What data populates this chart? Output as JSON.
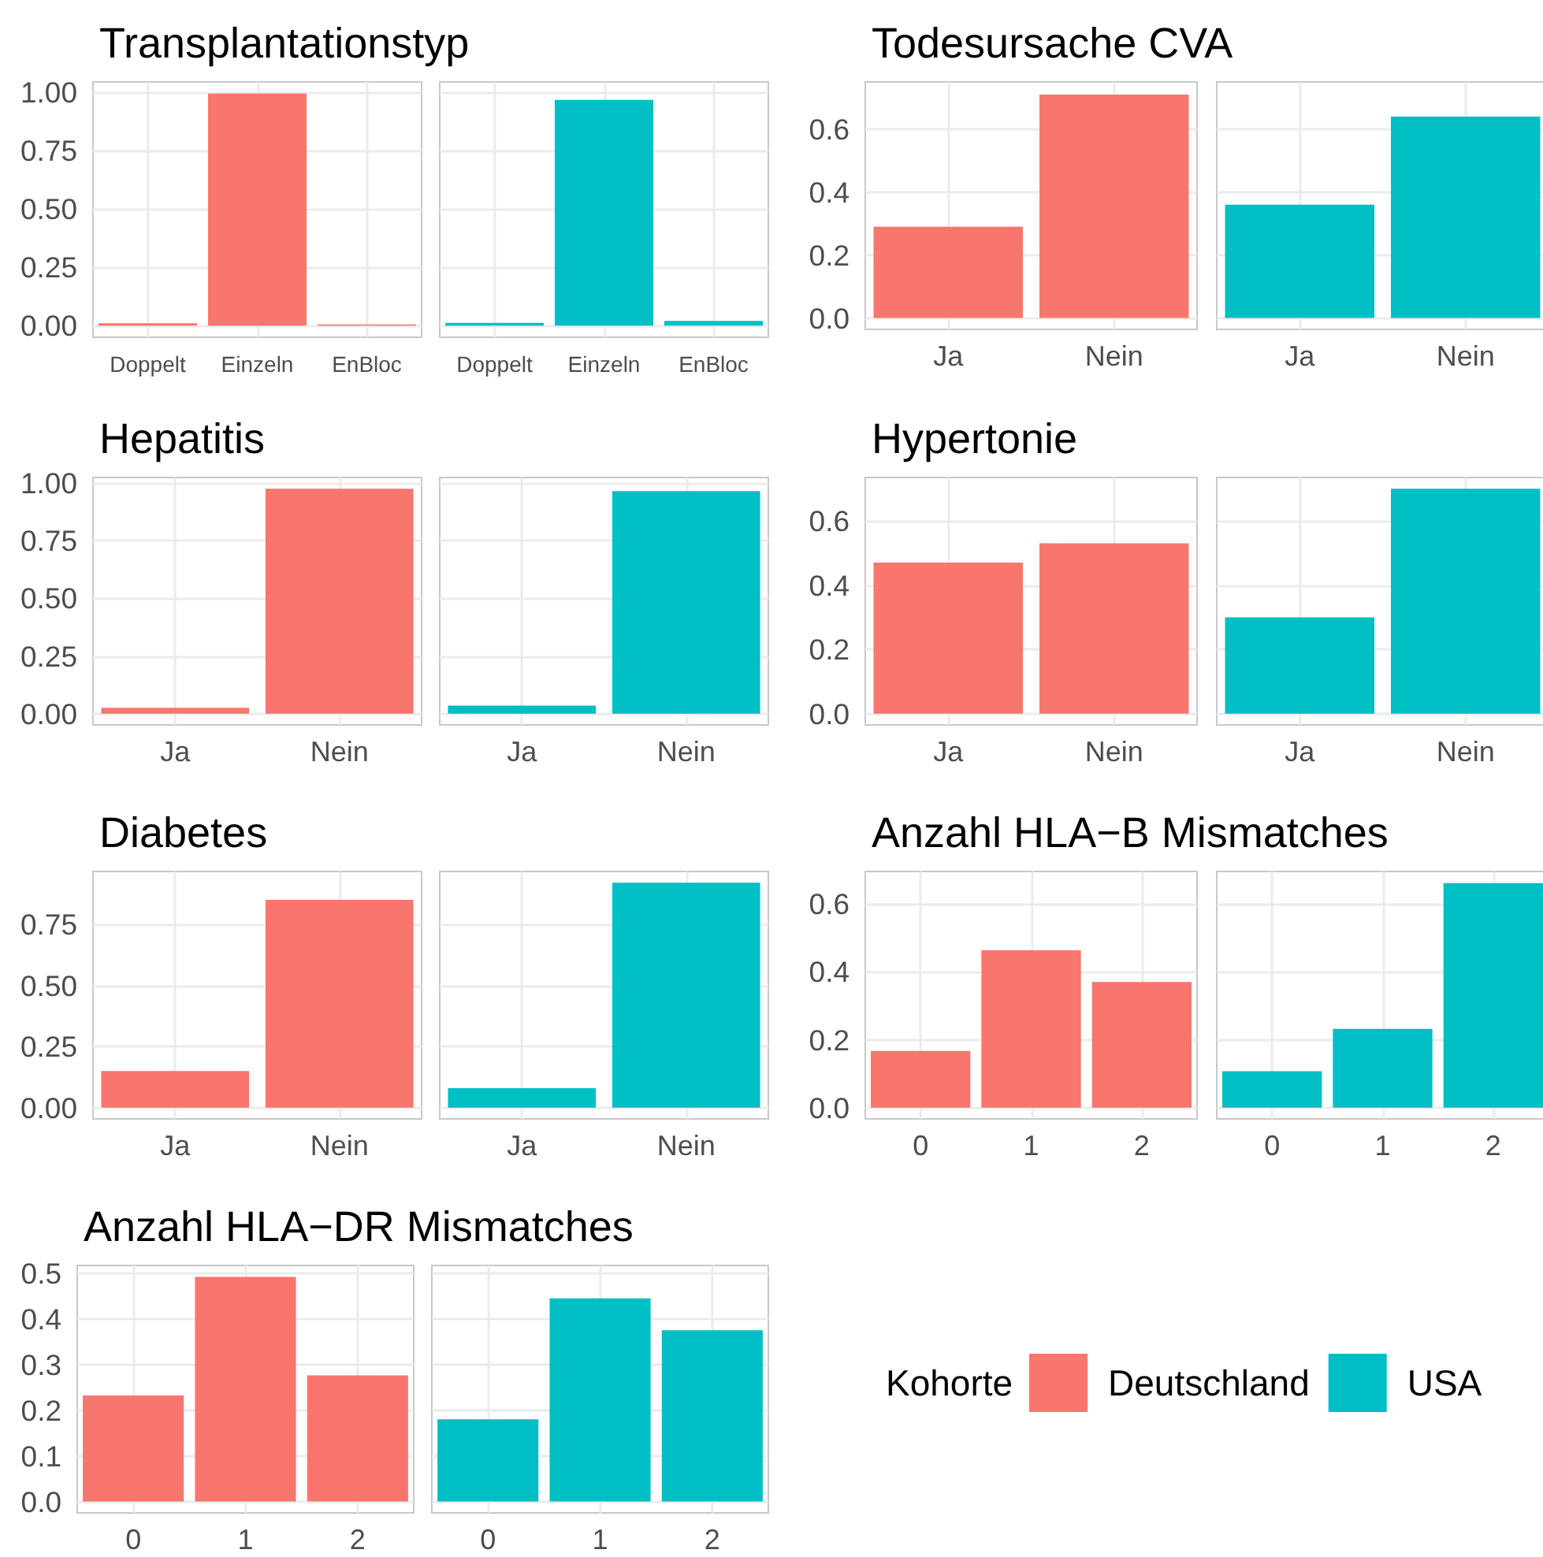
{
  "chart_data": [
    {
      "type": "bar",
      "title": "Transplantationstyp",
      "categories": [
        "Doppelt",
        "Einzeln",
        "EnBloc"
      ],
      "values": [
        0.01,
        0.995,
        0.005
      ],
      "color": "#f8766d",
      "ylim": [
        -0.05,
        1.045
      ],
      "yticks": [
        {
          "value": 0,
          "label": "0.00"
        },
        0.25,
        {
          "value": 0.5,
          "label": "0.50"
        },
        0.75,
        {
          "value": 1,
          "label": "1.00"
        }
      ],
      "grid": true
    },
    {
      "type": "bar",
      "categories": [
        "Doppelt",
        "Einzeln",
        "EnBloc"
      ],
      "values": [
        0.012,
        0.968,
        0.02
      ],
      "color": "#00bfc4",
      "ylim": [
        -0.05,
        1.045
      ],
      "yticks": [
        0,
        0.25,
        0.5,
        0.75,
        1
      ],
      "grid": true,
      "tick_labels": "x"
    },
    {
      "type": "bar",
      "title": "Todesursache CVA",
      "categories": [
        "Ja",
        "Nein"
      ],
      "values": [
        0.29,
        0.71
      ],
      "color": "#f8766d",
      "ylim": [
        -0.036,
        0.75
      ],
      "yticks": [
        {
          "value": 0,
          "label": "0.0"
        },
        0.2,
        0.4,
        0.6
      ],
      "grid": true
    },
    {
      "type": "bar",
      "categories": [
        "Ja",
        "Nein"
      ],
      "values": [
        0.36,
        0.64
      ],
      "color": "#00bfc4",
      "ylim": [
        -0.036,
        0.75
      ],
      "yticks": [
        0,
        0.2,
        0.4,
        0.6
      ],
      "grid": true,
      "tick_labels": "x"
    },
    {
      "type": "bar",
      "title": "Hepatitis",
      "categories": [
        "Ja",
        "Nein"
      ],
      "values": [
        0.025,
        0.975
      ],
      "color": "#f8766d",
      "ylim": [
        -0.049,
        1.024
      ],
      "yticks": [
        {
          "value": 0,
          "label": "0.00"
        },
        0.25,
        {
          "value": 0.5,
          "label": "0.50"
        },
        0.75,
        {
          "value": 1,
          "label": "1.00"
        }
      ],
      "grid": true
    },
    {
      "type": "bar",
      "categories": [
        "Ja",
        "Nein"
      ],
      "values": [
        0.035,
        0.965
      ],
      "color": "#00bfc4",
      "ylim": [
        -0.049,
        1.024
      ],
      "yticks": [
        0,
        0.25,
        0.5,
        0.75,
        1
      ],
      "grid": true,
      "tick_labels": "x"
    },
    {
      "type": "bar",
      "title": "Hypertonie",
      "categories": [
        "Ja",
        "Nein"
      ],
      "values": [
        0.47,
        0.53
      ],
      "color": "#f8766d",
      "ylim": [
        -0.035,
        0.735
      ],
      "yticks": [
        {
          "value": 0,
          "label": "0.0"
        },
        0.2,
        0.4,
        0.6
      ],
      "grid": true
    },
    {
      "type": "bar",
      "categories": [
        "Ja",
        "Nein"
      ],
      "values": [
        0.3,
        0.7
      ],
      "color": "#00bfc4",
      "ylim": [
        -0.035,
        0.735
      ],
      "yticks": [
        0,
        0.2,
        0.4,
        0.6
      ],
      "grid": true,
      "tick_labels": "x"
    },
    {
      "type": "bar",
      "title": "Diabetes",
      "categories": [
        "Ja",
        "Nein"
      ],
      "values": [
        0.15,
        0.85
      ],
      "color": "#f8766d",
      "ylim": [
        -0.046,
        0.966
      ],
      "yticks": [
        {
          "value": 0,
          "label": "0.00"
        },
        0.25,
        {
          "value": 0.5,
          "label": "0.50"
        },
        0.75
      ],
      "grid": true
    },
    {
      "type": "bar",
      "categories": [
        "Ja",
        "Nein"
      ],
      "values": [
        0.08,
        0.92
      ],
      "color": "#00bfc4",
      "ylim": [
        -0.046,
        0.966
      ],
      "yticks": [
        0,
        0.25,
        0.5,
        0.75
      ],
      "grid": true,
      "tick_labels": "x"
    },
    {
      "type": "bar",
      "title": "Anzahl HLA−B Mismatches",
      "categories": [
        "0",
        "1",
        "2"
      ],
      "values": [
        0.167,
        0.463,
        0.37
      ],
      "color": "#f8766d",
      "ylim": [
        -0.033,
        0.695
      ],
      "yticks": [
        {
          "value": 0,
          "label": "0.0"
        },
        0.2,
        0.4,
        0.6
      ],
      "grid": true
    },
    {
      "type": "bar",
      "categories": [
        "0",
        "1",
        "2"
      ],
      "values": [
        0.107,
        0.232,
        0.661
      ],
      "color": "#00bfc4",
      "ylim": [
        -0.033,
        0.695
      ],
      "yticks": [
        0,
        0.2,
        0.4,
        0.6
      ],
      "grid": true,
      "tick_labels": "x"
    },
    {
      "type": "bar",
      "title": "Anzahl HLA−DR Mismatches",
      "categories": [
        "0",
        "1",
        "2"
      ],
      "values": [
        0.232,
        0.492,
        0.276
      ],
      "color": "#f8766d",
      "ylim": [
        -0.025,
        0.517
      ],
      "yticks": [
        {
          "value": 0,
          "label": "0.0"
        },
        0.1,
        0.2,
        0.3,
        0.4,
        0.5
      ],
      "grid": true
    },
    {
      "type": "bar",
      "categories": [
        "0",
        "1",
        "2"
      ],
      "values": [
        0.18,
        0.445,
        0.375
      ],
      "color": "#00bfc4",
      "ylim": [
        -0.025,
        0.517
      ],
      "yticks": [
        0,
        0.1,
        0.2,
        0.3,
        0.4,
        0.5
      ],
      "grid": true,
      "tick_labels": "x"
    },
    {
      "type": "other",
      "legend_title": "Kohorte",
      "series": [
        {
          "name": "Deutschland",
          "color": "#f8766d"
        },
        {
          "name": "USA",
          "color": "#00bfc4"
        }
      ],
      "legend": "bottom right"
    }
  ]
}
